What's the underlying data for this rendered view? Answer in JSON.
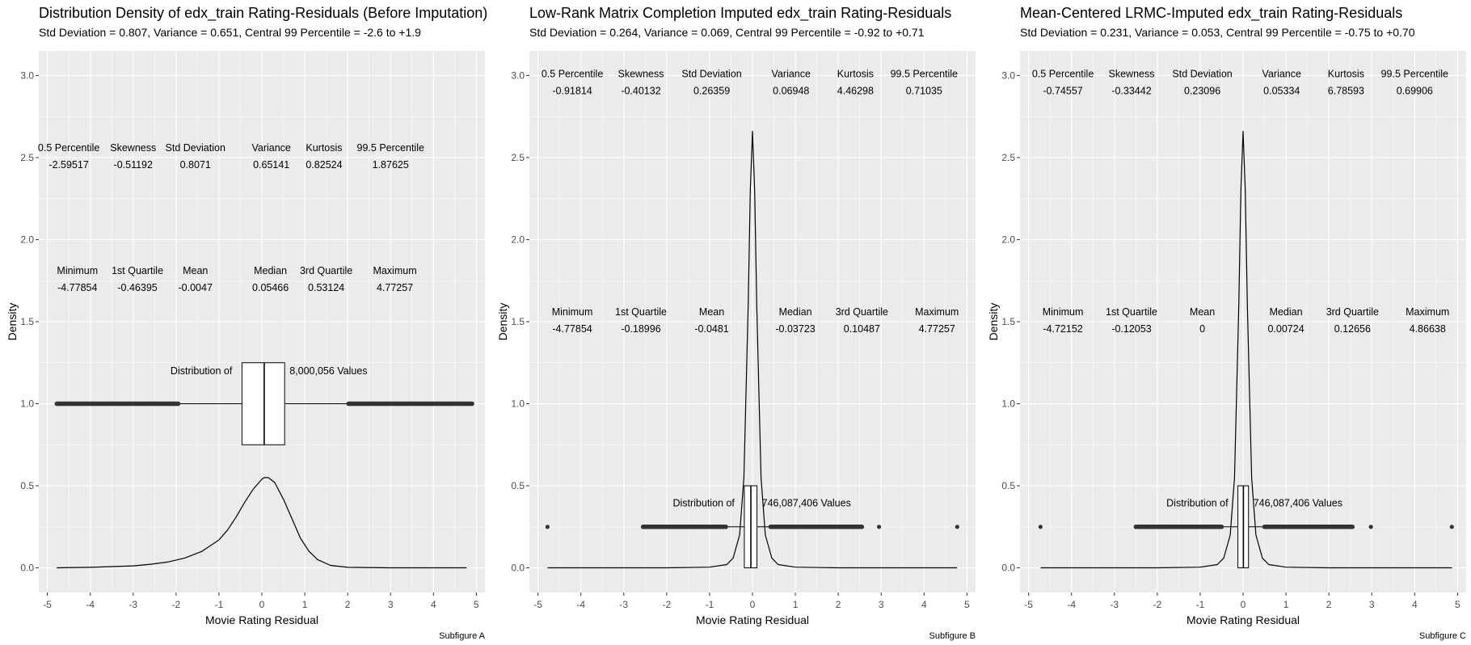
{
  "figure": {
    "background": "#ffffff",
    "panel_bg": "#ebebeb",
    "grid_color": "#ffffff",
    "line_color": "#000000",
    "point_color": "#333333"
  },
  "chart_data": [
    {
      "type": "density",
      "title": "Distribution Density of edx_train Rating-Residuals (Before Imputation)",
      "subtitle": "Std Deviation = 0.807, Variance = 0.651, Central 99 Percentile = -2.6 to +1.9",
      "xlabel": "Movie Rating Residual",
      "ylabel": "Density",
      "caption": "Subfigure A",
      "xlim": [
        -5.2,
        5.2
      ],
      "ylim": [
        -0.15,
        3.15
      ],
      "x_ticks": [
        -5,
        -4,
        -3,
        -2,
        -1,
        0,
        1,
        2,
        3,
        4,
        5
      ],
      "x_tick_labels": [
        "-5",
        "-4",
        "-3",
        "-2",
        "-1",
        "0",
        "1",
        "2",
        "3",
        "4",
        "5"
      ],
      "y_ticks": [
        0,
        0.5,
        1,
        1.5,
        2,
        2.5,
        3
      ],
      "y_tick_labels": [
        "0.0",
        "0.5",
        "1.0",
        "1.5",
        "2.0",
        "2.5",
        "3.0"
      ],
      "grid": true,
      "density": {
        "x": [
          -4.78,
          -4,
          -3,
          -2.6,
          -2.2,
          -1.8,
          -1.4,
          -1.0,
          -0.8,
          -0.6,
          -0.4,
          -0.2,
          0.0,
          0.05,
          0.15,
          0.3,
          0.5,
          0.7,
          0.9,
          1.1,
          1.3,
          1.6,
          2.0,
          3,
          4,
          4.77
        ],
        "y": [
          0.0,
          0.003,
          0.012,
          0.022,
          0.035,
          0.06,
          0.1,
          0.17,
          0.23,
          0.31,
          0.4,
          0.48,
          0.54,
          0.55,
          0.55,
          0.52,
          0.42,
          0.3,
          0.18,
          0.1,
          0.05,
          0.015,
          0.003,
          0.0,
          0.0,
          0.0
        ]
      },
      "boxplot": {
        "y": 1.0,
        "half_height": 0.25,
        "q1": -0.46395,
        "median": 0.05466,
        "q3": 0.53124,
        "whisker_low": -1.95,
        "whisker_high": 2.02,
        "outlier_ranges": [
          [
            -4.78,
            -1.95
          ],
          [
            2.02,
            4.9
          ]
        ],
        "outlier_points": [
          -4.6,
          4.72,
          4.77
        ]
      },
      "boxplot_label": {
        "prefix": "Distribution of",
        "count": "8,000,056",
        "suffix": "Values",
        "y": 1.2
      },
      "stats_rows": [
        {
          "y": 2.54,
          "x": [
            -4.5,
            -3.0,
            -1.55,
            0.22,
            1.45,
            3.0
          ],
          "headers": [
            "0.5 Percentile",
            "Skewness",
            "Std Deviation",
            "Variance",
            "Kurtosis",
            "99.5 Percentile"
          ],
          "values": [
            "-2.59517",
            "-0.51192",
            "0.8071",
            "0.65141",
            "0.82524",
            "1.87625"
          ]
        },
        {
          "y": 1.79,
          "x": [
            -4.3,
            -2.9,
            -1.55,
            0.2,
            1.5,
            3.1
          ],
          "headers": [
            "Minimum",
            "1st Quartile",
            "Mean",
            "Median",
            "3rd Quartile",
            "Maximum"
          ],
          "values": [
            "-4.77854",
            "-0.46395",
            "-0.0047",
            "0.05466",
            "0.53124",
            "4.77257"
          ]
        }
      ]
    },
    {
      "type": "density",
      "title": "Low-Rank Matrix Completion Imputed edx_train Rating-Residuals",
      "subtitle": "Std Deviation = 0.264, Variance = 0.069, Central 99 Percentile = -0.92 to +0.71",
      "xlabel": "Movie Rating Residual",
      "ylabel": "Density",
      "caption": "Subfigure B",
      "xlim": [
        -5.2,
        5.2
      ],
      "ylim": [
        -0.15,
        3.15
      ],
      "x_ticks": [
        -5,
        -4,
        -3,
        -2,
        -1,
        0,
        1,
        2,
        3,
        4,
        5
      ],
      "x_tick_labels": [
        "-5",
        "-4",
        "-3",
        "-2",
        "-1",
        "0",
        "1",
        "2",
        "3",
        "4",
        "5"
      ],
      "y_ticks": [
        0,
        0.5,
        1,
        1.5,
        2,
        2.5,
        3
      ],
      "y_tick_labels": [
        "0.0",
        "0.5",
        "1.0",
        "1.5",
        "2.0",
        "2.5",
        "3.0"
      ],
      "grid": true,
      "density": {
        "x": [
          -4.78,
          -2,
          -1.0,
          -0.6,
          -0.45,
          -0.3,
          -0.2,
          -0.1,
          -0.05,
          0.0,
          0.05,
          0.1,
          0.2,
          0.3,
          0.45,
          0.6,
          1.0,
          2,
          4.77
        ],
        "y": [
          0.0,
          0.0,
          0.004,
          0.02,
          0.06,
          0.2,
          0.55,
          1.6,
          2.3,
          2.66,
          2.3,
          1.6,
          0.55,
          0.2,
          0.06,
          0.02,
          0.004,
          0.0,
          0.0
        ]
      },
      "boxplot": {
        "y": 0.25,
        "half_height": 0.25,
        "q1": -0.18996,
        "median": -0.03723,
        "q3": 0.10487,
        "whisker_low": -0.62,
        "whisker_high": 0.42,
        "outlier_ranges": [
          [
            -2.55,
            -0.62
          ],
          [
            0.42,
            2.55
          ]
        ],
        "outlier_points": [
          -4.77854,
          2.95,
          4.77257
        ]
      },
      "boxplot_label": {
        "prefix": "Distribution of",
        "count": "746,087,406",
        "suffix": "Values",
        "y": 0.395
      },
      "stats_rows": [
        {
          "y": 2.99,
          "x": [
            -4.2,
            -2.6,
            -0.95,
            0.9,
            2.4,
            4.0
          ],
          "headers": [
            "0.5 Percentile",
            "Skewness",
            "Std Deviation",
            "Variance",
            "Kurtosis",
            "99.5 Percentile"
          ],
          "values": [
            "-0.91814",
            "-0.40132",
            "0.26359",
            "0.06948",
            "4.46298",
            "0.71035"
          ]
        },
        {
          "y": 1.54,
          "x": [
            -4.2,
            -2.6,
            -0.95,
            1.0,
            2.55,
            4.3
          ],
          "headers": [
            "Minimum",
            "1st Quartile",
            "Mean",
            "Median",
            "3rd Quartile",
            "Maximum"
          ],
          "values": [
            "-4.77854",
            "-0.18996",
            "-0.0481",
            "-0.03723",
            "0.10487",
            "4.77257"
          ]
        }
      ]
    },
    {
      "type": "density",
      "title": "Mean-Centered LRMC-Imputed edx_train Rating-Residuals",
      "subtitle": "Std Deviation = 0.231, Variance = 0.053, Central 99 Percentile = -0.75 to +0.70",
      "xlabel": "Movie Rating Residual",
      "ylabel": "Density",
      "caption": "Subfigure C",
      "xlim": [
        -5.2,
        5.2
      ],
      "ylim": [
        -0.15,
        3.15
      ],
      "x_ticks": [
        -5,
        -4,
        -3,
        -2,
        -1,
        0,
        1,
        2,
        3,
        4,
        5
      ],
      "x_tick_labels": [
        "-5",
        "-4",
        "-3",
        "-2",
        "-1",
        "0",
        "1",
        "2",
        "3",
        "4",
        "5"
      ],
      "y_ticks": [
        0,
        0.5,
        1,
        1.5,
        2,
        2.5,
        3
      ],
      "y_tick_labels": [
        "0.0",
        "0.5",
        "1.0",
        "1.5",
        "2.0",
        "2.5",
        "3.0"
      ],
      "grid": true,
      "density": {
        "x": [
          -4.72,
          -2,
          -1.0,
          -0.6,
          -0.45,
          -0.3,
          -0.2,
          -0.1,
          -0.05,
          0.0,
          0.05,
          0.1,
          0.2,
          0.3,
          0.45,
          0.6,
          1.0,
          2,
          4.87
        ],
        "y": [
          0.0,
          0.0,
          0.004,
          0.02,
          0.06,
          0.2,
          0.55,
          1.6,
          2.3,
          2.66,
          2.3,
          1.6,
          0.55,
          0.2,
          0.06,
          0.02,
          0.004,
          0.0,
          0.0
        ]
      },
      "boxplot": {
        "y": 0.25,
        "half_height": 0.25,
        "q1": -0.12053,
        "median": 0.00724,
        "q3": 0.12656,
        "whisker_low": -0.5,
        "whisker_high": 0.5,
        "outlier_ranges": [
          [
            -2.5,
            -0.5
          ],
          [
            0.5,
            2.55
          ]
        ],
        "outlier_points": [
          -4.72152,
          2.98,
          4.86638
        ]
      },
      "boxplot_label": {
        "prefix": "Distribution of",
        "count": "746,087,406",
        "suffix": "Values",
        "y": 0.395
      },
      "stats_rows": [
        {
          "y": 2.99,
          "x": [
            -4.2,
            -2.6,
            -0.95,
            0.9,
            2.4,
            4.0
          ],
          "headers": [
            "0.5 Percentile",
            "Skewness",
            "Std Deviation",
            "Variance",
            "Kurtosis",
            "99.5 Percentile"
          ],
          "values": [
            "-0.74557",
            "-0.33442",
            "0.23096",
            "0.05334",
            "6.78593",
            "0.69906"
          ]
        },
        {
          "y": 1.54,
          "x": [
            -4.2,
            -2.6,
            -0.95,
            1.0,
            2.55,
            4.3
          ],
          "headers": [
            "Minimum",
            "1st Quartile",
            "Mean",
            "Median",
            "3rd Quartile",
            "Maximum"
          ],
          "values": [
            "-4.72152",
            "-0.12053",
            "0",
            "0.00724",
            "0.12656",
            "4.86638"
          ]
        }
      ]
    }
  ]
}
